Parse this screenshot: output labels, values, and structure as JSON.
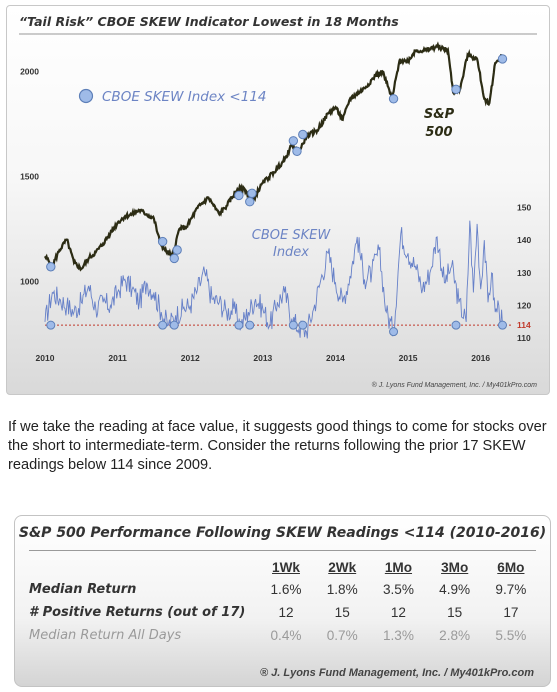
{
  "chart_data": {
    "type": "line",
    "title": "“Tail Risk” CBOE SKEW Indicator Lowest in 18 Months",
    "x_ticks": [
      "2010",
      "2011",
      "2012",
      "2013",
      "2014",
      "2015",
      "2016"
    ],
    "left_axis": {
      "ticks": [
        1000,
        1500,
        2000
      ],
      "range": [
        750,
        2150
      ]
    },
    "right_axis": {
      "ticks": [
        110,
        120,
        130,
        140,
        150
      ],
      "threshold": 114,
      "range": [
        107,
        152
      ]
    },
    "legend": "CBOE SKEW Index <114",
    "series": [
      {
        "name": "S&P 500",
        "axis": "left",
        "color": "#2c2c14",
        "points": [
          [
            2010.0,
            1120
          ],
          [
            2010.1,
            1075
          ],
          [
            2010.2,
            1150
          ],
          [
            2010.3,
            1200
          ],
          [
            2010.4,
            1090
          ],
          [
            2010.5,
            1060
          ],
          [
            2010.6,
            1110
          ],
          [
            2010.7,
            1140
          ],
          [
            2010.8,
            1180
          ],
          [
            2010.9,
            1230
          ],
          [
            2011.0,
            1280
          ],
          [
            2011.1,
            1310
          ],
          [
            2011.2,
            1320
          ],
          [
            2011.3,
            1340
          ],
          [
            2011.4,
            1320
          ],
          [
            2011.5,
            1300
          ],
          [
            2011.58,
            1190
          ],
          [
            2011.65,
            1150
          ],
          [
            2011.75,
            1120
          ],
          [
            2011.85,
            1250
          ],
          [
            2011.95,
            1260
          ],
          [
            2012.1,
            1350
          ],
          [
            2012.25,
            1400
          ],
          [
            2012.4,
            1320
          ],
          [
            2012.5,
            1360
          ],
          [
            2012.65,
            1440
          ],
          [
            2012.75,
            1440
          ],
          [
            2012.85,
            1380
          ],
          [
            2013.0,
            1470
          ],
          [
            2013.15,
            1520
          ],
          [
            2013.3,
            1580
          ],
          [
            2013.4,
            1650
          ],
          [
            2013.5,
            1620
          ],
          [
            2013.6,
            1690
          ],
          [
            2013.75,
            1720
          ],
          [
            2013.9,
            1800
          ],
          [
            2014.0,
            1830
          ],
          [
            2014.1,
            1770
          ],
          [
            2014.2,
            1870
          ],
          [
            2014.4,
            1920
          ],
          [
            2014.55,
            1980
          ],
          [
            2014.65,
            2000
          ],
          [
            2014.78,
            1870
          ],
          [
            2014.88,
            2050
          ],
          [
            2015.0,
            2050
          ],
          [
            2015.1,
            2100
          ],
          [
            2015.25,
            2100
          ],
          [
            2015.4,
            2120
          ],
          [
            2015.55,
            2100
          ],
          [
            2015.62,
            1900
          ],
          [
            2015.72,
            1920
          ],
          [
            2015.82,
            2080
          ],
          [
            2015.95,
            2060
          ],
          [
            2016.05,
            1870
          ],
          [
            2016.12,
            1850
          ],
          [
            2016.2,
            2040
          ],
          [
            2016.3,
            2080
          ]
        ]
      },
      {
        "name": "CBOE SKEW Index",
        "axis": "right",
        "color": "#6680c8",
        "points": [
          [
            2010.0,
            115
          ],
          [
            2010.1,
            124
          ],
          [
            2010.2,
            122
          ],
          [
            2010.3,
            120
          ],
          [
            2010.4,
            118
          ],
          [
            2010.5,
            121
          ],
          [
            2010.6,
            126
          ],
          [
            2010.7,
            119
          ],
          [
            2010.8,
            121
          ],
          [
            2010.9,
            120
          ],
          [
            2011.0,
            124
          ],
          [
            2011.1,
            128
          ],
          [
            2011.2,
            125
          ],
          [
            2011.3,
            121
          ],
          [
            2011.4,
            127
          ],
          [
            2011.5,
            124
          ],
          [
            2011.6,
            118
          ],
          [
            2011.7,
            114
          ],
          [
            2011.8,
            117
          ],
          [
            2011.9,
            119
          ],
          [
            2012.0,
            120
          ],
          [
            2012.1,
            125
          ],
          [
            2012.2,
            130
          ],
          [
            2012.3,
            122
          ],
          [
            2012.4,
            121
          ],
          [
            2012.5,
            118
          ],
          [
            2012.6,
            119
          ],
          [
            2012.7,
            114
          ],
          [
            2012.8,
            118
          ],
          [
            2012.9,
            122
          ],
          [
            2013.0,
            119
          ],
          [
            2013.1,
            114
          ],
          [
            2013.2,
            121
          ],
          [
            2013.3,
            124
          ],
          [
            2013.4,
            116
          ],
          [
            2013.5,
            113
          ],
          [
            2013.6,
            112
          ],
          [
            2013.7,
            119
          ],
          [
            2013.8,
            128
          ],
          [
            2013.9,
            136
          ],
          [
            2014.0,
            127
          ],
          [
            2014.1,
            121
          ],
          [
            2014.2,
            129
          ],
          [
            2014.3,
            141
          ],
          [
            2014.4,
            128
          ],
          [
            2014.5,
            130
          ],
          [
            2014.6,
            137
          ],
          [
            2014.7,
            118
          ],
          [
            2014.8,
            112
          ],
          [
            2014.9,
            142
          ],
          [
            2015.0,
            136
          ],
          [
            2015.1,
            132
          ],
          [
            2015.2,
            125
          ],
          [
            2015.3,
            130
          ],
          [
            2015.4,
            141
          ],
          [
            2015.5,
            127
          ],
          [
            2015.6,
            132
          ],
          [
            2015.7,
            121
          ],
          [
            2015.8,
            115
          ],
          [
            2015.85,
            146
          ],
          [
            2015.9,
            124
          ],
          [
            2015.95,
            145
          ],
          [
            2016.0,
            125
          ],
          [
            2016.05,
            140
          ],
          [
            2016.1,
            121
          ],
          [
            2016.15,
            130
          ],
          [
            2016.2,
            118
          ],
          [
            2016.25,
            120
          ],
          [
            2016.3,
            114
          ]
        ]
      }
    ],
    "markers": [
      [
        2010.08,
        1070
      ],
      [
        2011.62,
        1190
      ],
      [
        2011.78,
        1110
      ],
      [
        2011.82,
        1150
      ],
      [
        2012.67,
        1410
      ],
      [
        2012.82,
        1380
      ],
      [
        2012.85,
        1420
      ],
      [
        2013.42,
        1670
      ],
      [
        2013.47,
        1620
      ],
      [
        2013.55,
        1700
      ],
      [
        2014.8,
        1870
      ],
      [
        2015.66,
        1915
      ],
      [
        2016.3,
        2060
      ]
    ],
    "skew_markers": [
      [
        2010.08,
        114
      ],
      [
        2011.62,
        114
      ],
      [
        2011.78,
        114
      ],
      [
        2012.67,
        114
      ],
      [
        2012.82,
        114
      ],
      [
        2013.42,
        114
      ],
      [
        2013.55,
        114
      ],
      [
        2014.8,
        112
      ],
      [
        2015.66,
        114
      ],
      [
        2016.3,
        114
      ]
    ],
    "labels": {
      "sp500": [
        "S&P",
        "500"
      ],
      "skew": [
        "CBOE SKEW",
        "Index"
      ],
      "threshold": "114",
      "credit": "® J. Lyons Fund Management, Inc. / My401kPro.com"
    }
  },
  "note_text": "If we take the reading at face value, it suggests good things to come for stocks over the short to intermediate-term. Consider the returns following the prior 17 SKEW readings below 114 since 2009.",
  "table": {
    "title": "S&P 500 Performance Following SKEW Readings <114 (2010-2016)",
    "columns": [
      "1Wk",
      "2Wk",
      "1Mo",
      "3Mo",
      "6Mo"
    ],
    "rows": [
      {
        "label": "Median Return",
        "values": [
          "1.6%",
          "1.8%",
          "3.5%",
          "4.9%",
          "9.7%"
        ]
      },
      {
        "label": "# Positive Returns (out of 17)",
        "values": [
          "12",
          "15",
          "12",
          "15",
          "17"
        ]
      },
      {
        "label": "Median Return All Days",
        "values": [
          "0.4%",
          "0.7%",
          "1.3%",
          "2.8%",
          "5.5%"
        ]
      }
    ],
    "credit": "® J. Lyons Fund Management, Inc. / My401kPro.com"
  }
}
